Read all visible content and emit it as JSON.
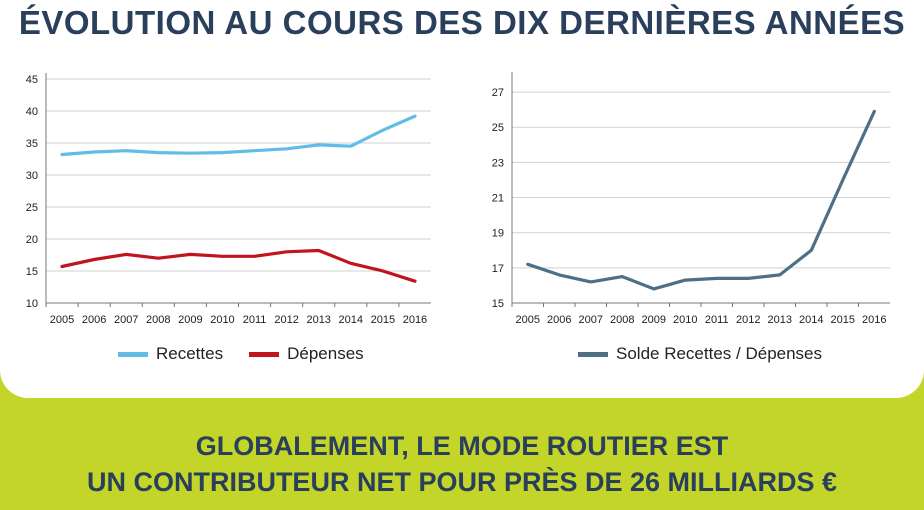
{
  "title": "ÉVOLUTION AU COURS DES DIX DERNIÈRES ANNÉES",
  "footer": {
    "line1": "GLOBALEMENT, LE MODE ROUTIER EST",
    "line2": "UN CONTRIBUTEUR NET POUR PRÈS DE 26 MILLIARDS €"
  },
  "colors": {
    "recettes": "#62bde6",
    "depenses": "#c0151f",
    "solde": "#4e6f85",
    "text_dark": "#2a3f5c",
    "accent_green": "#c4d52a"
  },
  "chart_data": [
    {
      "type": "line",
      "title": "",
      "xlabel": "",
      "ylabel": "",
      "x": [
        "2005",
        "2006",
        "2007",
        "2008",
        "2009",
        "2010",
        "2011",
        "2012",
        "2013",
        "2014",
        "2015",
        "2016"
      ],
      "y_ticks": [
        10,
        15,
        20,
        25,
        30,
        35,
        40,
        45
      ],
      "ylim": [
        10,
        45
      ],
      "grid": "horizontal",
      "legend_position": "bottom",
      "series": [
        {
          "name": "Recettes",
          "color": "#62bde6",
          "values": [
            33.2,
            33.6,
            33.8,
            33.5,
            33.4,
            33.5,
            33.8,
            34.1,
            34.7,
            34.5,
            37.0,
            39.2
          ]
        },
        {
          "name": "Dépenses",
          "color": "#c0151f",
          "values": [
            15.7,
            16.8,
            17.6,
            17.0,
            17.6,
            17.3,
            17.3,
            18.0,
            18.2,
            16.2,
            15.0,
            13.4
          ]
        }
      ]
    },
    {
      "type": "line",
      "title": "",
      "xlabel": "",
      "ylabel": "",
      "x": [
        "2005",
        "2006",
        "2007",
        "2008",
        "2009",
        "2010",
        "2011",
        "2012",
        "2013",
        "2014",
        "2015",
        "2016"
      ],
      "y_ticks": [
        15,
        17,
        19,
        21,
        23,
        25,
        27
      ],
      "ylim": [
        15,
        27.8
      ],
      "grid": "horizontal",
      "legend_position": "bottom",
      "series": [
        {
          "name": "Solde Recettes / Dépenses",
          "color": "#4e6f85",
          "values": [
            17.2,
            16.6,
            16.2,
            16.5,
            15.8,
            16.3,
            16.4,
            16.4,
            16.6,
            18.0,
            22.0,
            25.9
          ]
        }
      ]
    }
  ]
}
